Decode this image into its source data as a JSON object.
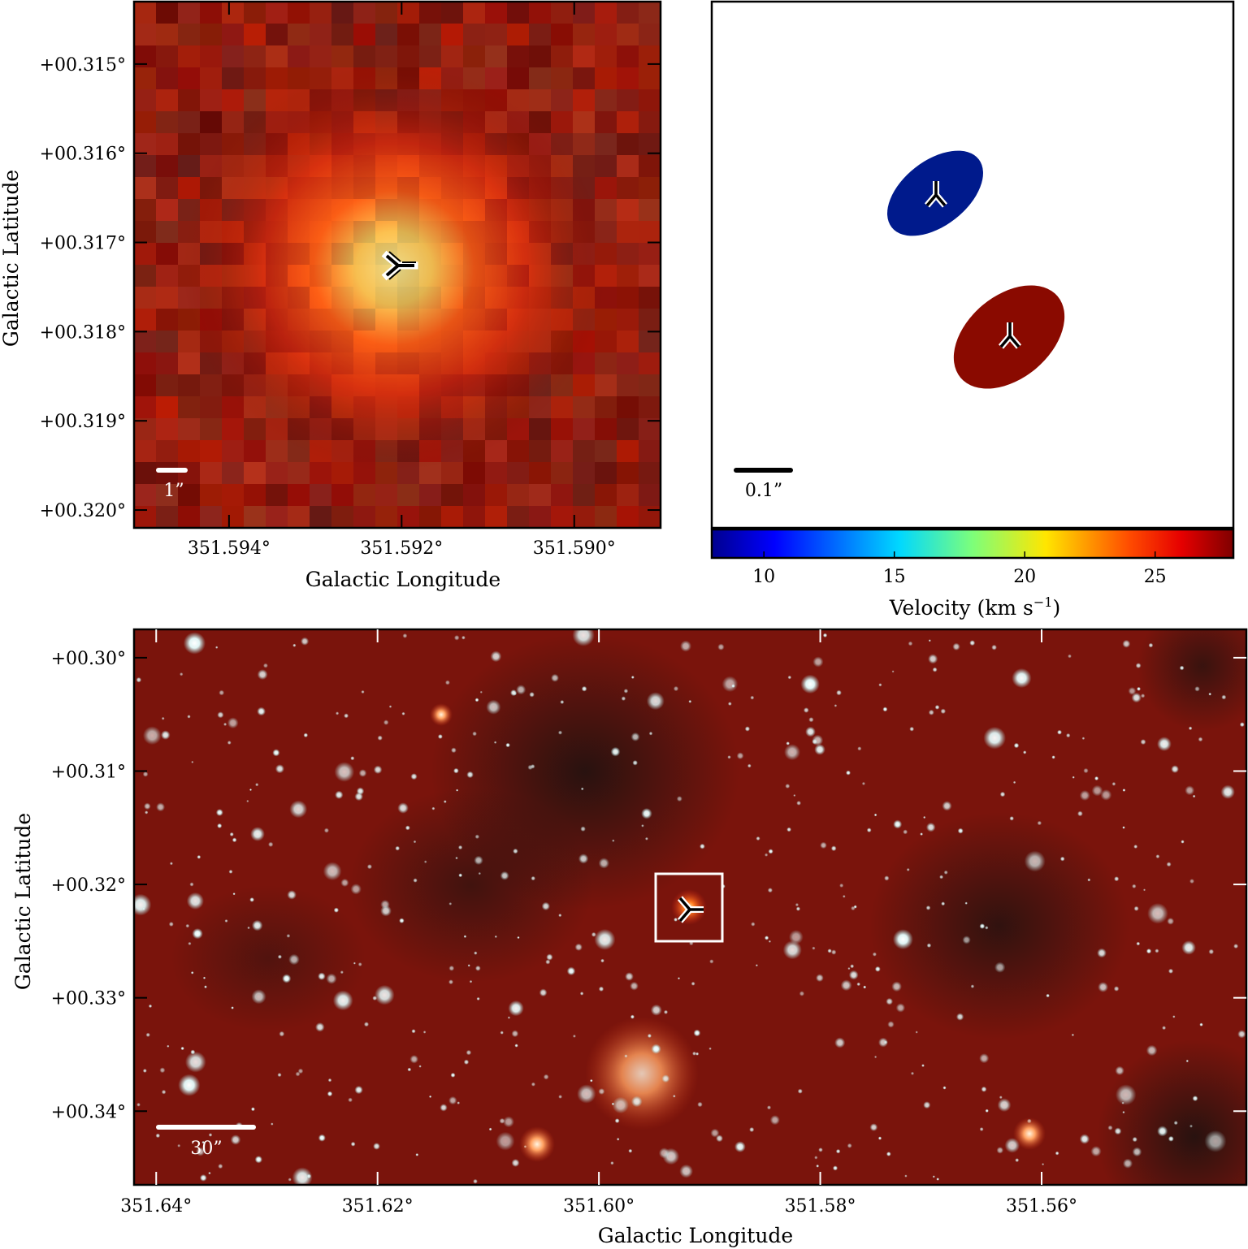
{
  "colors": {
    "blue_component": "#001a8c",
    "red_component": "#8a0a00",
    "marker": "#000000",
    "image_background": "#7a140c",
    "star": "#dff4f4"
  },
  "icons": {
    "maser_marker": "tri-branch-icon",
    "bar": "scale-bar-icon"
  },
  "top_left": {
    "y_ticks": [
      "+00.320°",
      "+00.319°",
      "+00.318°",
      "+00.317°",
      "+00.316°",
      "+00.315°"
    ],
    "x_ticks": [
      "351.594°",
      "351.592°",
      "351.590°"
    ],
    "xlabel": "Galactic Longitude",
    "ylabel": "Galactic Latitude",
    "scale_bar": "1”"
  },
  "top_right": {
    "scale_bar": "0.1”",
    "colorbar_ticks": [
      "10",
      "15",
      "20",
      "25"
    ],
    "colorbar_label": "Velocity (km s",
    "colorbar_label_exp": "−1",
    "colorbar_label_close": ")",
    "colorbar_range": [
      8,
      28
    ]
  },
  "bottom": {
    "y_ticks": [
      "+00.34°",
      "+00.33°",
      "+00.32°",
      "+00.31°",
      "+00.30°"
    ],
    "x_ticks": [
      "351.64°",
      "351.62°",
      "351.60°",
      "351.58°",
      "351.56°"
    ],
    "xlabel": "Galactic Longitude",
    "ylabel": "Galactic Latitude",
    "scale_bar": "30”"
  },
  "chart_data": [
    {
      "type": "image",
      "panel": "zoomed infrared cutout",
      "xlabel": "Galactic Longitude",
      "ylabel": "Galactic Latitude",
      "x_unit": "deg",
      "xlim": [
        351.5951,
        351.589
      ],
      "ylim": [
        0.3148,
        0.3207
      ],
      "x_ticks": [
        351.594,
        351.592,
        351.59
      ],
      "y_ticks": [
        0.315,
        0.316,
        0.317,
        0.318,
        0.319,
        0.32
      ],
      "markers": [
        {
          "l": 351.5919,
          "b": 0.3177
        }
      ],
      "scale_bar": "1”",
      "grid": false
    },
    {
      "type": "scatter",
      "panel": "maser spot map",
      "components": [
        {
          "velocity": 9,
          "color": "#001a8c"
        },
        {
          "velocity": 27,
          "color": "#8a0a00"
        }
      ],
      "colorbar": {
        "label": "Velocity (km s−1)",
        "range": [
          8,
          28
        ],
        "ticks": [
          10,
          15,
          20,
          25
        ]
      },
      "scale_bar": "0.1”",
      "grid": false
    },
    {
      "type": "image",
      "panel": "wide-field infrared image",
      "xlabel": "Galactic Longitude",
      "ylabel": "Galactic Latitude",
      "xlim": [
        351.642,
        351.5415
      ],
      "ylim": [
        0.2935,
        0.3425
      ],
      "x_ticks": [
        351.64,
        351.62,
        351.6,
        351.58,
        351.56
      ],
      "y_ticks": [
        0.3,
        0.31,
        0.32,
        0.33,
        0.34
      ],
      "markers": [
        {
          "l": 351.5922,
          "b": 0.3176
        }
      ],
      "inset_box": {
        "l": [
          351.5942,
          351.5883
        ],
        "b": [
          0.3148,
          0.3208
        ]
      },
      "scale_bar": "30”",
      "grid": false
    }
  ]
}
